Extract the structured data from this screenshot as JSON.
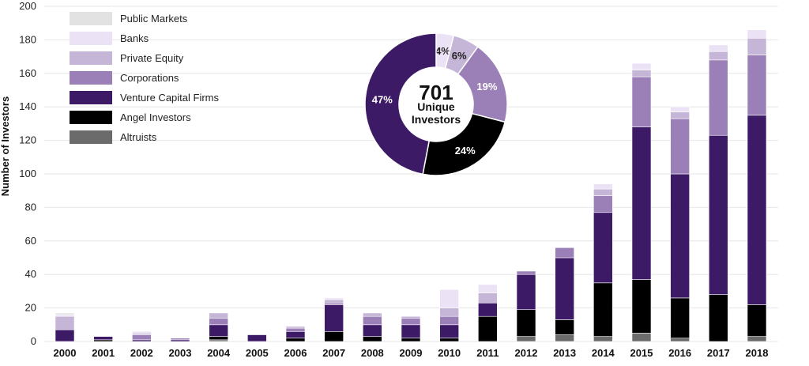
{
  "chart_data": [
    {
      "type": "bar",
      "stacked": true,
      "ylabel": "Number of Investors",
      "ylim": [
        0,
        200
      ],
      "yticks": [
        0,
        20,
        40,
        60,
        80,
        100,
        120,
        140,
        160,
        180,
        200
      ],
      "grid": true,
      "legend": "top-left",
      "categories": [
        "2000",
        "2001",
        "2002",
        "2003",
        "2004",
        "2005",
        "2006",
        "2007",
        "2008",
        "2009",
        "2010",
        "2011",
        "2012",
        "2013",
        "2014",
        "2015",
        "2016",
        "2017",
        "2018"
      ],
      "series": [
        {
          "name": "Altruists",
          "color": "#6b6b6b",
          "values": [
            0,
            0,
            0,
            0,
            1,
            0,
            0,
            0,
            0,
            0,
            0,
            0,
            3,
            4,
            3,
            5,
            2,
            0,
            3
          ]
        },
        {
          "name": "Angel Investors",
          "color": "#000000",
          "values": [
            0,
            1,
            0,
            0,
            2,
            0,
            2,
            6,
            3,
            2,
            2,
            15,
            16,
            9,
            32,
            32,
            24,
            28,
            19
          ]
        },
        {
          "name": "Venture Capital Firms",
          "color": "#3d1a66",
          "values": [
            7,
            2,
            1,
            1,
            7,
            4,
            4,
            16,
            7,
            8,
            8,
            8,
            21,
            37,
            42,
            91,
            74,
            95,
            113
          ]
        },
        {
          "name": "Corporations",
          "color": "#9b80b8",
          "values": [
            0,
            0,
            3,
            1,
            4,
            0,
            2,
            1,
            5,
            4,
            5,
            0,
            2,
            6,
            10,
            30,
            33,
            45,
            36
          ]
        },
        {
          "name": "Private Equity",
          "color": "#c5b5d6",
          "values": [
            8,
            0,
            1,
            0,
            3,
            0,
            1,
            2,
            2,
            1,
            5,
            6,
            0,
            0,
            4,
            4,
            4,
            5,
            10
          ]
        },
        {
          "name": "Banks",
          "color": "#ebe2f6",
          "values": [
            1,
            0,
            1,
            0,
            0,
            0,
            0,
            1,
            0,
            0,
            11,
            5,
            0,
            0,
            3,
            4,
            3,
            4,
            5
          ]
        },
        {
          "name": "Public Markets",
          "color": "#e2e2e2",
          "values": [
            1,
            0,
            0,
            0,
            0,
            0,
            0,
            0,
            0,
            0,
            0,
            0,
            0,
            0,
            0,
            0,
            0,
            0,
            0
          ]
        }
      ]
    },
    {
      "type": "pie",
      "donut": true,
      "center_value": "701",
      "center_label_line1": "Unique",
      "center_label_line2": "Investors",
      "slices": [
        {
          "name": "Banks",
          "value": 4,
          "label": "4%",
          "color": "#ebe2f6",
          "label_color": "#222222"
        },
        {
          "name": "Private Equity",
          "value": 6,
          "label": "6%",
          "color": "#c5b5d6",
          "label_color": "#222222"
        },
        {
          "name": "Corporations",
          "value": 19,
          "label": "19%",
          "color": "#9b80b8",
          "label_color": "#ffffff"
        },
        {
          "name": "Angel Investors",
          "value": 24,
          "label": "24%",
          "color": "#000000",
          "label_color": "#ffffff"
        },
        {
          "name": "Venture Capital Firms",
          "value": 47,
          "label": "47%",
          "color": "#3d1a66",
          "label_color": "#ffffff"
        }
      ]
    }
  ]
}
